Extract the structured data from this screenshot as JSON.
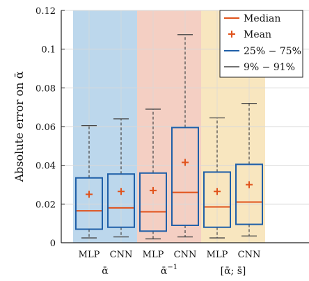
{
  "chart_data": {
    "type": "box",
    "ylabel": "Absolute error on ᾱ",
    "ylim": [
      0,
      0.12
    ],
    "yticks": [
      0,
      0.02,
      0.04,
      0.06,
      0.08,
      0.1,
      0.12
    ],
    "ytick_labels": [
      "0",
      "0.02",
      "0.04",
      "0.06",
      "0.08",
      "0.1",
      "0.12"
    ],
    "grid": true,
    "legend_position": "top-right",
    "legend": [
      {
        "label": "Median",
        "kind": "median-line"
      },
      {
        "label": "Mean",
        "kind": "mean-marker"
      },
      {
        "label": "25% − 75%",
        "kind": "iqr-box"
      },
      {
        "label": "9% − 91%",
        "kind": "whisker"
      }
    ],
    "groups": [
      {
        "label": "ᾱ",
        "superscript": "",
        "color": "#bcd7ec"
      },
      {
        "label": "ᾱ",
        "superscript": "−1",
        "color": "#f4cfc3"
      },
      {
        "label": "[ᾱ; s̄]",
        "superscript": "",
        "color": "#f8e6bf"
      }
    ],
    "boxes": [
      {
        "category": "MLP",
        "group": 0,
        "p9": 0.0025,
        "q1": 0.007,
        "median": 0.0165,
        "q3": 0.0335,
        "p91": 0.0605,
        "mean": 0.025
      },
      {
        "category": "CNN",
        "group": 0,
        "p9": 0.003,
        "q1": 0.008,
        "median": 0.018,
        "q3": 0.0355,
        "p91": 0.064,
        "mean": 0.0265
      },
      {
        "category": "MLP",
        "group": 1,
        "p9": 0.002,
        "q1": 0.006,
        "median": 0.016,
        "q3": 0.036,
        "p91": 0.069,
        "mean": 0.027
      },
      {
        "category": "CNN",
        "group": 1,
        "p9": 0.003,
        "q1": 0.009,
        "median": 0.026,
        "q3": 0.0595,
        "p91": 0.1075,
        "mean": 0.0415
      },
      {
        "category": "MLP",
        "group": 2,
        "p9": 0.0025,
        "q1": 0.008,
        "median": 0.0185,
        "q3": 0.0365,
        "p91": 0.0645,
        "mean": 0.0265
      },
      {
        "category": "CNN",
        "group": 2,
        "p9": 0.0035,
        "q1": 0.0095,
        "median": 0.021,
        "q3": 0.0405,
        "p91": 0.072,
        "mean": 0.03
      }
    ],
    "colors": {
      "box": "#1f5fa8",
      "median": "#e0521b",
      "mean": "#e0521b",
      "whisker": "#444444",
      "grid": "#d9d9d9"
    }
  }
}
